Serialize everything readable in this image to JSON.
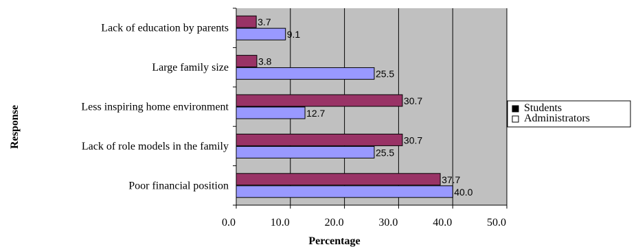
{
  "chart_data": {
    "type": "bar",
    "orientation": "horizontal",
    "title": "",
    "xlabel": "Percentage",
    "ylabel": "Response",
    "xlim": [
      0,
      50
    ],
    "x_ticks": [
      "0.0",
      "10.0",
      "20.0",
      "30.0",
      "40.0",
      "50.0"
    ],
    "grid": "vertical",
    "legend_position": "right",
    "categories": [
      "Lack of education by parents",
      "Large family size",
      "Less inspiring home environment",
      "Lack of role models in the family",
      "Poor financial position"
    ],
    "series": [
      {
        "name": "Students",
        "values": [
          3.7,
          3.8,
          30.7,
          30.7,
          37.7
        ],
        "labels": [
          "3.7",
          "3.8",
          "30.7",
          "30.7",
          "37.7"
        ],
        "color": "#993366"
      },
      {
        "name": "Administrators",
        "values": [
          9.1,
          25.5,
          12.7,
          25.5,
          40.0
        ],
        "labels": [
          "9.1",
          "25.5",
          "12.7",
          "25.5",
          "40.0"
        ],
        "color": "#9999ff"
      }
    ],
    "plot_background": "#c0c0c0",
    "legend_markers": {
      "Students": "#000000",
      "Administrators": "#ffffff"
    }
  }
}
